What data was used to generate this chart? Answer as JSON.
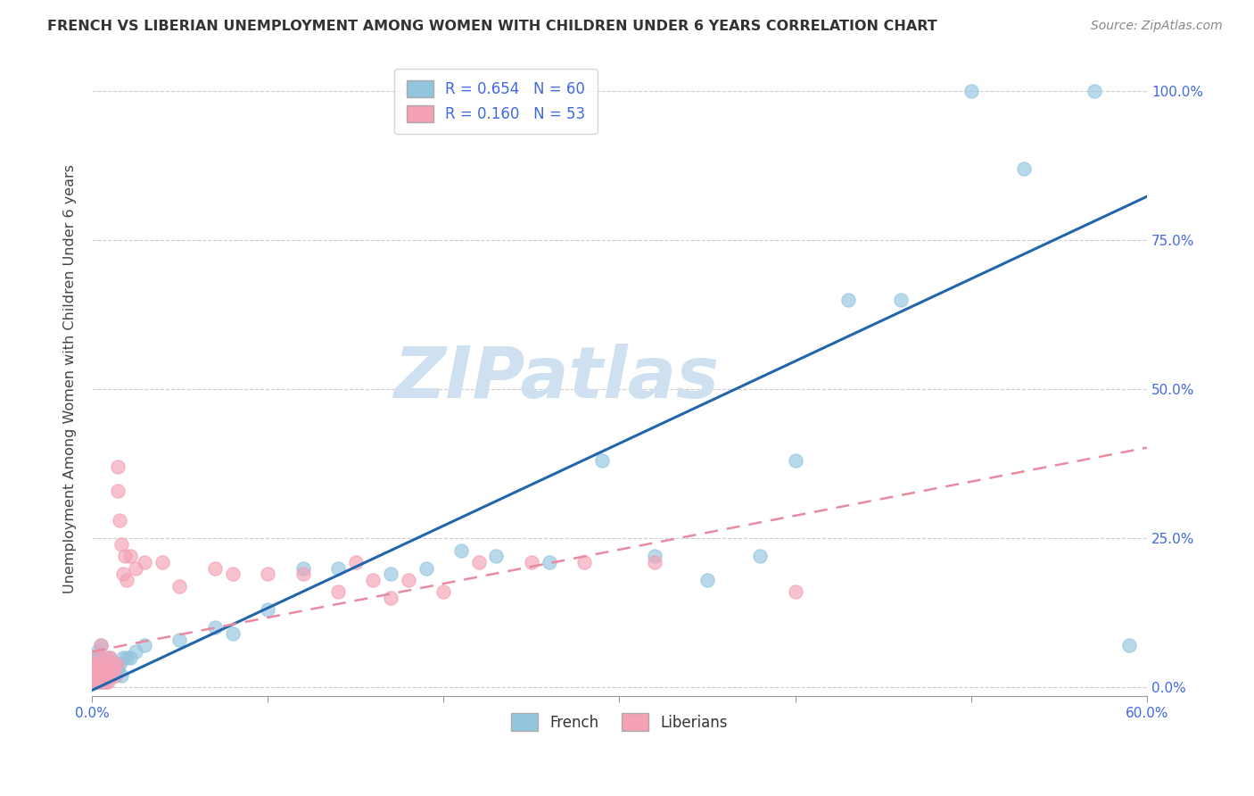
{
  "title": "FRENCH VS LIBERIAN UNEMPLOYMENT AMONG WOMEN WITH CHILDREN UNDER 6 YEARS CORRELATION CHART",
  "source": "Source: ZipAtlas.com",
  "ylabel": "Unemployment Among Women with Children Under 6 years",
  "xlim": [
    0.0,
    0.6
  ],
  "ylim": [
    -0.015,
    1.05
  ],
  "xticks": [
    0.0,
    0.1,
    0.2,
    0.3,
    0.4,
    0.5,
    0.6
  ],
  "xtick_labels": [
    "0.0%",
    "",
    "",
    "",
    "",
    "",
    "60.0%"
  ],
  "yticks": [
    0.0,
    0.25,
    0.5,
    0.75,
    1.0
  ],
  "ytick_labels": [
    "0.0%",
    "25.0%",
    "50.0%",
    "75.0%",
    "100.0%"
  ],
  "french_color": "#92c5de",
  "liberian_color": "#f4a0b5",
  "french_line_color": "#2166ac",
  "liberian_line_color": "#e88aa0",
  "french_R": 0.654,
  "french_N": 60,
  "liberian_R": 0.16,
  "liberian_N": 53,
  "background_color": "#ffffff",
  "grid_color": "#c8c8c8",
  "axis_label_color": "#4169e1",
  "title_color": "#333333",
  "watermark_text": "ZIPatlas",
  "watermark_color": "#cfe0f0",
  "french_line_slope": 1.38,
  "french_line_intercept": -0.005,
  "liberian_line_slope": 0.57,
  "liberian_line_intercept": 0.06,
  "french_x": [
    0.001,
    0.001,
    0.001,
    0.002,
    0.002,
    0.002,
    0.003,
    0.003,
    0.003,
    0.004,
    0.004,
    0.004,
    0.005,
    0.005,
    0.005,
    0.006,
    0.006,
    0.006,
    0.007,
    0.007,
    0.008,
    0.008,
    0.009,
    0.009,
    0.01,
    0.01,
    0.011,
    0.012,
    0.013,
    0.014,
    0.015,
    0.016,
    0.017,
    0.018,
    0.02,
    0.022,
    0.025,
    0.03,
    0.05,
    0.07,
    0.08,
    0.1,
    0.12,
    0.14,
    0.17,
    0.19,
    0.21,
    0.23,
    0.26,
    0.29,
    0.32,
    0.35,
    0.38,
    0.4,
    0.43,
    0.46,
    0.5,
    0.53,
    0.57,
    0.59
  ],
  "french_y": [
    0.02,
    0.03,
    0.04,
    0.01,
    0.03,
    0.05,
    0.02,
    0.04,
    0.06,
    0.01,
    0.03,
    0.05,
    0.02,
    0.04,
    0.07,
    0.01,
    0.03,
    0.05,
    0.02,
    0.04,
    0.01,
    0.03,
    0.02,
    0.04,
    0.02,
    0.05,
    0.03,
    0.04,
    0.02,
    0.03,
    0.03,
    0.04,
    0.02,
    0.05,
    0.05,
    0.05,
    0.06,
    0.07,
    0.08,
    0.1,
    0.09,
    0.13,
    0.2,
    0.2,
    0.19,
    0.2,
    0.23,
    0.22,
    0.21,
    0.38,
    0.22,
    0.18,
    0.22,
    0.38,
    0.65,
    0.65,
    1.0,
    0.87,
    1.0,
    0.07
  ],
  "liberian_x": [
    0.001,
    0.001,
    0.002,
    0.002,
    0.003,
    0.003,
    0.003,
    0.004,
    0.004,
    0.005,
    0.005,
    0.005,
    0.006,
    0.006,
    0.007,
    0.007,
    0.008,
    0.008,
    0.009,
    0.009,
    0.01,
    0.01,
    0.011,
    0.012,
    0.013,
    0.014,
    0.015,
    0.015,
    0.016,
    0.017,
    0.018,
    0.019,
    0.02,
    0.022,
    0.025,
    0.03,
    0.04,
    0.05,
    0.07,
    0.08,
    0.1,
    0.12,
    0.14,
    0.15,
    0.16,
    0.17,
    0.18,
    0.2,
    0.22,
    0.25,
    0.28,
    0.32,
    0.4
  ],
  "liberian_y": [
    0.02,
    0.04,
    0.01,
    0.03,
    0.01,
    0.03,
    0.05,
    0.02,
    0.04,
    0.01,
    0.03,
    0.07,
    0.02,
    0.04,
    0.01,
    0.03,
    0.02,
    0.05,
    0.01,
    0.04,
    0.02,
    0.05,
    0.03,
    0.04,
    0.02,
    0.04,
    0.33,
    0.37,
    0.28,
    0.24,
    0.19,
    0.22,
    0.18,
    0.22,
    0.2,
    0.21,
    0.21,
    0.17,
    0.2,
    0.19,
    0.19,
    0.19,
    0.16,
    0.21,
    0.18,
    0.15,
    0.18,
    0.16,
    0.21,
    0.21,
    0.21,
    0.21,
    0.16
  ]
}
